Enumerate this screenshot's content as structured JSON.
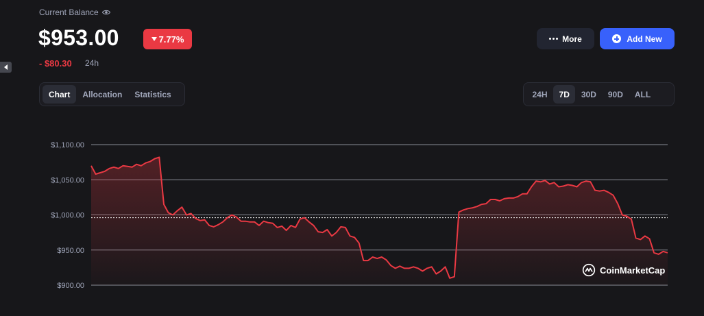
{
  "header": {
    "label": "Current Balance",
    "balance": "$953.00",
    "change_percent": "7.77%",
    "change_amount": "- $80.30",
    "change_period": "24h"
  },
  "actions": {
    "more_label": "More",
    "add_label": "Add New"
  },
  "view_tabs": [
    {
      "label": "Chart",
      "active": true
    },
    {
      "label": "Allocation",
      "active": false
    },
    {
      "label": "Statistics",
      "active": false
    }
  ],
  "range_tabs": [
    {
      "label": "24H",
      "active": false
    },
    {
      "label": "7D",
      "active": true
    },
    {
      "label": "30D",
      "active": false
    },
    {
      "label": "90D",
      "active": false
    },
    {
      "label": "ALL",
      "active": false
    }
  ],
  "watermark": "CoinMarketCap",
  "colors": {
    "negative": "#ea3943",
    "accent": "#3861fb",
    "background": "#17171a"
  },
  "chart_data": {
    "type": "area",
    "ylim": [
      900,
      1100
    ],
    "y_ticks": [
      {
        "value": 1100,
        "label": "$1,100.00"
      },
      {
        "value": 1050,
        "label": "$1,050.00"
      },
      {
        "value": 1000,
        "label": "$1,000.00"
      },
      {
        "value": 950,
        "label": "$950.00"
      },
      {
        "value": 900,
        "label": "$900.00"
      }
    ],
    "reference_line": 996,
    "series": [
      {
        "values": [
          1070,
          1058,
          1060,
          1062,
          1066,
          1068,
          1066,
          1070,
          1069,
          1068,
          1072,
          1070,
          1074,
          1076,
          1080,
          1082,
          1015,
          1003,
          1000,
          1006,
          1011,
          1000,
          1002,
          995,
          992,
          993,
          985,
          983,
          986,
          990,
          996,
          1000,
          997,
          991,
          991,
          990,
          990,
          985,
          991,
          989,
          988,
          982,
          984,
          978,
          985,
          982,
          994,
          996,
          990,
          985,
          976,
          975,
          979,
          970,
          975,
          983,
          982,
          970,
          968,
          960,
          935,
          935,
          940,
          938,
          940,
          936,
          928,
          924,
          927,
          924,
          924,
          926,
          924,
          920,
          924,
          926,
          916,
          920,
          926,
          910,
          912,
          1004,
          1007,
          1009,
          1010,
          1012,
          1015,
          1016,
          1022,
          1022,
          1020,
          1023,
          1024,
          1024,
          1026,
          1030,
          1030,
          1040,
          1048,
          1047,
          1049,
          1044,
          1046,
          1040,
          1041,
          1043,
          1042,
          1040,
          1046,
          1048,
          1047,
          1035,
          1034,
          1035,
          1032,
          1028,
          1016,
          1000,
          998,
          994,
          967,
          965,
          970,
          966,
          946,
          944,
          948,
          946
        ]
      }
    ]
  }
}
